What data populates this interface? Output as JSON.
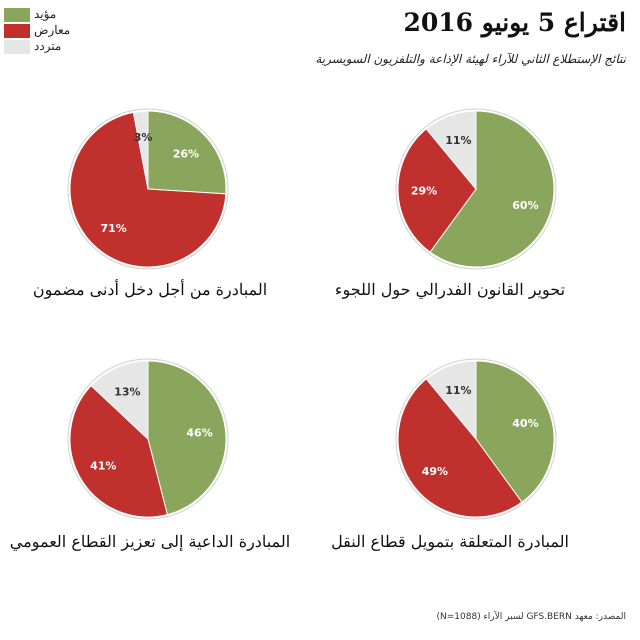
{
  "header": {
    "title": "اقتراع 5 يونيو 2016",
    "subtitle": "نتائج الإستطلاع الثاني للآراء لهيئة الإذاعة والتلفزيون السويسرية"
  },
  "legend": [
    {
      "label": "مؤيد",
      "color": "#8aa55c"
    },
    {
      "label": "معارض",
      "color": "#c0312e"
    },
    {
      "label": "متردد",
      "color": "#e6e6e6"
    }
  ],
  "source": "المصدر: معهد GFS.BERN لسبر الآراء (N=1088)",
  "chart_data": [
    {
      "type": "pie",
      "title": "تحوير القانون الفدرالي حول اللجوء",
      "slices": [
        {
          "label": "مؤيد",
          "value": 60,
          "color": "#8aa55c",
          "display": "60%"
        },
        {
          "label": "معارض",
          "value": 29,
          "color": "#c0312e",
          "display": "29%"
        },
        {
          "label": "متردد",
          "value": 11,
          "color": "#e6e6e6",
          "display": "11%"
        }
      ]
    },
    {
      "type": "pie",
      "title": "المبادرة من أجل دخل أدنى مضمون",
      "slices": [
        {
          "label": "مؤيد",
          "value": 26,
          "color": "#8aa55c",
          "display": "26%"
        },
        {
          "label": "معارض",
          "value": 71,
          "color": "#c0312e",
          "display": "71%"
        },
        {
          "label": "متردد",
          "value": 3,
          "color": "#e6e6e6",
          "display": "3%"
        }
      ]
    },
    {
      "type": "pie",
      "title": "المبادرة المتعلقة بتمويل قطاع النقل",
      "slices": [
        {
          "label": "مؤيد",
          "value": 40,
          "color": "#8aa55c",
          "display": "40%"
        },
        {
          "label": "معارض",
          "value": 49,
          "color": "#c0312e",
          "display": "49%"
        },
        {
          "label": "متردد",
          "value": 11,
          "color": "#e6e6e6",
          "display": "11%"
        }
      ]
    },
    {
      "type": "pie",
      "title": "المبادرة الداعية إلى تعزيز القطاع العمومي",
      "slices": [
        {
          "label": "مؤيد",
          "value": 46,
          "color": "#8aa55c",
          "display": "46%"
        },
        {
          "label": "معارض",
          "value": 41,
          "color": "#c0312e",
          "display": "41%"
        },
        {
          "label": "متردد",
          "value": 13,
          "color": "#e6e6e6",
          "display": "13%"
        }
      ]
    }
  ]
}
